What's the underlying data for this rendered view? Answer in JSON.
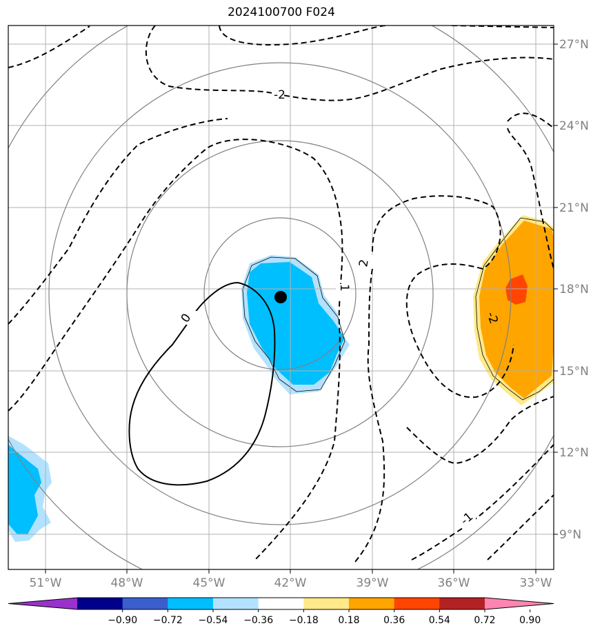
{
  "title": "2024100700 F024",
  "map": {
    "lon_labels": [
      "51°W",
      "48°W",
      "45°W",
      "42°W",
      "39°W",
      "36°W",
      "33°W"
    ],
    "lat_labels": [
      "27°N",
      "24°N",
      "21°N",
      "18°N",
      "15°N",
      "12°N",
      "9°N"
    ],
    "contour_labels": [
      "-2",
      "2",
      "-1",
      "1",
      "0",
      "-2",
      "-1"
    ],
    "storm_center": {
      "lon": "42.4°W",
      "lat": "17.6°N"
    }
  },
  "colorbar": {
    "ticks": [
      "−0.90",
      "−0.72",
      "−0.54",
      "−0.36",
      "−0.18",
      "0.18",
      "0.36",
      "0.54",
      "0.72",
      "0.90"
    ],
    "colors": [
      "#9932cc",
      "#00008b",
      "#3a5fcd",
      "#00bfff",
      "#b2e2ff",
      "#ffffff",
      "#ffe98a",
      "#ffa500",
      "#ff4500",
      "#b22222",
      "#ff85b0"
    ]
  }
}
